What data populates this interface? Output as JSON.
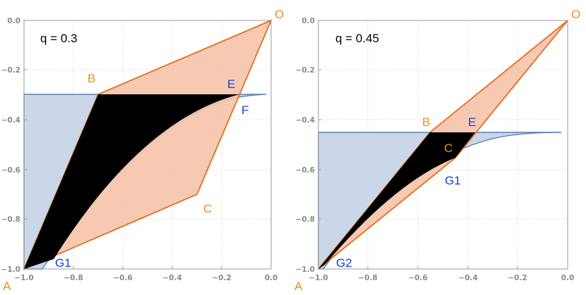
{
  "colors": {
    "orange": "#E0701F",
    "orange_label": "#E8901C",
    "orange_fill": "#F6C3AA",
    "blue_fill": "#CAD7E8",
    "blue_stroke": "#5A80B4",
    "blue_label": "#1A3FD8",
    "black_fill": "#000000",
    "grid": "#d6d6d6",
    "tick_text": "#8a8a8a"
  },
  "panels": [
    {
      "q_label": "q = 0.3",
      "x_ticks": [
        "−1.0",
        "−0.8",
        "−0.6",
        "−0.4",
        "−0.2",
        "0.0"
      ],
      "y_ticks": [
        "0.0",
        "−0.2",
        "−0.4",
        "−0.6",
        "−0.8",
        "−1.0"
      ],
      "points": [
        {
          "name": "O",
          "label": "O",
          "x": 0.0,
          "y": 0.0,
          "color": "orange"
        },
        {
          "name": "A",
          "label": "A",
          "x": -1.0,
          "y": -1.0,
          "color": "orange"
        },
        {
          "name": "B",
          "label": "B",
          "x": -0.7,
          "y": -0.3,
          "color": "orange"
        },
        {
          "name": "C",
          "label": "C",
          "x": -0.3,
          "y": -0.7,
          "color": "orange"
        },
        {
          "name": "E",
          "label": "E",
          "x": -0.13,
          "y": -0.3,
          "color": "blue"
        },
        {
          "name": "F",
          "label": "F",
          "x": -0.13,
          "y": -0.31,
          "color": "blue"
        },
        {
          "name": "G1",
          "label": "G1",
          "x": -0.88,
          "y": -0.95,
          "color": "blue"
        }
      ],
      "orange_polygon": [
        [
          0.0,
          0.0
        ],
        [
          -0.7,
          -0.3
        ],
        [
          -1.0,
          -1.0
        ],
        [
          -0.3,
          -0.7
        ]
      ],
      "blue_region": {
        "top_y": -0.3,
        "left_x": -1.0,
        "bottom_y": -1.0
      },
      "black_region": {
        "top_y": -0.3,
        "left_point": [
          -0.7,
          -0.3
        ],
        "bottom_point": [
          -1.0,
          -1.0
        ],
        "right_point": [
          -0.13,
          -0.31
        ]
      }
    },
    {
      "q_label": "q = 0.45",
      "x_ticks": [
        "−1.0",
        "−0.8",
        "−0.6",
        "−0.4",
        "−0.2",
        "0.0"
      ],
      "y_ticks": [
        "0.0",
        "−0.2",
        "−0.4",
        "−0.6",
        "−0.8",
        "−1.0"
      ],
      "points": [
        {
          "name": "O",
          "label": "O",
          "x": 0.0,
          "y": 0.0,
          "color": "orange"
        },
        {
          "name": "A",
          "label": "A",
          "x": -1.0,
          "y": -1.0,
          "color": "orange"
        },
        {
          "name": "B",
          "label": "B",
          "x": -0.55,
          "y": -0.45,
          "color": "orange"
        },
        {
          "name": "C",
          "label": "C",
          "x": -0.45,
          "y": -0.55,
          "color": "orange"
        },
        {
          "name": "E",
          "label": "E",
          "x": -0.37,
          "y": -0.45,
          "color": "blue"
        },
        {
          "name": "G1",
          "label": "G1",
          "x": -0.48,
          "y": -0.58,
          "color": "blue"
        },
        {
          "name": "G2",
          "label": "G2",
          "x": -0.98,
          "y": -0.99,
          "color": "blue"
        }
      ],
      "orange_polygon": [
        [
          0.0,
          0.0
        ],
        [
          -0.55,
          -0.45
        ],
        [
          -1.0,
          -1.0
        ],
        [
          -0.45,
          -0.55
        ]
      ],
      "blue_region": {
        "top_y": -0.45,
        "left_x": -1.0,
        "bottom_y": -1.0
      },
      "black_region": {
        "top_y": -0.45,
        "left_point": [
          -0.55,
          -0.45
        ],
        "bottom_point": [
          -1.0,
          -1.0
        ],
        "right_point": [
          -0.37,
          -0.45
        ]
      }
    }
  ]
}
